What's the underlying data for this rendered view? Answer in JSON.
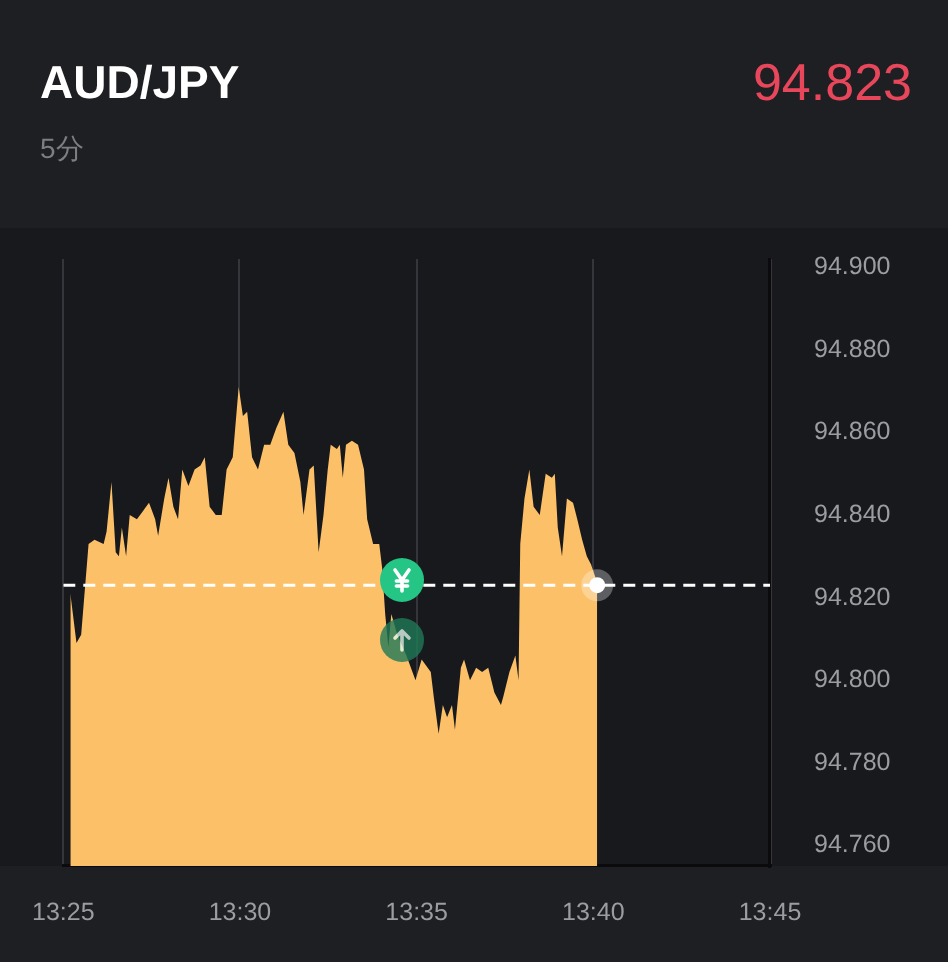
{
  "chart_data": {
    "type": "area",
    "title": "AUD/JPY",
    "subtitle": "5分",
    "annotations": [
      "94.823"
    ],
    "xlim": [
      13.41667,
      13.75
    ],
    "ylim": [
      94.755,
      94.902
    ],
    "xticks": [
      {
        "value": 13.41667,
        "label": "13:25"
      },
      {
        "value": 13.5,
        "label": "13:30"
      },
      {
        "value": 13.58333,
        "label": "13:35"
      },
      {
        "value": 13.66667,
        "label": "13:40"
      },
      {
        "value": 13.75,
        "label": "13:45"
      }
    ],
    "yticks": [
      {
        "value": 94.76,
        "label": "94.760"
      },
      {
        "value": 94.78,
        "label": "94.780"
      },
      {
        "value": 94.8,
        "label": "94.800"
      },
      {
        "value": 94.82,
        "label": "94.820"
      },
      {
        "value": 94.84,
        "label": "94.840"
      },
      {
        "value": 94.86,
        "label": "94.860"
      },
      {
        "value": 94.88,
        "label": "94.880"
      },
      {
        "value": 94.9,
        "label": "94.900"
      }
    ],
    "grid": "x",
    "ref_lines": [
      {
        "axis": "y",
        "value": 94.823,
        "color": "#ffffff",
        "line_style": "dashed"
      }
    ],
    "series": [
      {
        "color": "#fcc068",
        "x": [
          13.42,
          13.4229,
          13.4251,
          13.4286,
          13.4314,
          13.4357,
          13.4371,
          13.4394,
          13.4414,
          13.4429,
          13.4443,
          13.4463,
          13.448,
          13.4514,
          13.4543,
          13.4571,
          13.46,
          13.4614,
          13.4643,
          13.4663,
          13.4686,
          13.4708,
          13.4728,
          13.4757,
          13.4786,
          13.4814,
          13.4834,
          13.4857,
          13.4886,
          13.4914,
          13.4937,
          13.4966,
          13.4994,
          13.5014,
          13.5034,
          13.5057,
          13.5085,
          13.5114,
          13.5143,
          13.5171,
          13.5205,
          13.5228,
          13.5257,
          13.5285,
          13.53,
          13.5328,
          13.5348,
          13.5371,
          13.5394,
          13.5414,
          13.5428,
          13.5457,
          13.5471,
          13.5485,
          13.55,
          13.5528,
          13.5557,
          13.5585,
          13.56,
          13.5628,
          13.5657,
          13.5671,
          13.5685,
          13.57,
          13.5714,
          13.5742,
          13.5785,
          13.5828,
          13.5857,
          13.59,
          13.5914,
          13.5937,
          13.5957,
          13.5977,
          13.6,
          13.6014,
          13.6042,
          13.6057,
          13.6085,
          13.6114,
          13.6142,
          13.6171,
          13.62,
          13.6231,
          13.6242,
          13.6271,
          13.6299,
          13.6314,
          13.6322,
          13.6342,
          13.6365,
          13.6385,
          13.6414,
          13.6442,
          13.6471,
          13.6485,
          13.6499,
          13.6519,
          13.6542,
          13.6571,
          13.6591,
          13.6614,
          13.6636,
          13.6656,
          13.6676,
          13.6685
        ],
        "values": [
          94.821,
          94.809,
          94.811,
          94.833,
          94.834,
          94.833,
          94.836,
          94.848,
          94.831,
          94.83,
          94.837,
          94.83,
          94.84,
          94.839,
          94.841,
          94.843,
          94.839,
          94.835,
          94.844,
          94.849,
          94.842,
          94.839,
          94.851,
          94.847,
          94.851,
          94.852,
          94.854,
          94.842,
          94.84,
          94.84,
          94.851,
          94.854,
          94.871,
          94.864,
          94.865,
          94.854,
          94.851,
          94.857,
          94.857,
          94.861,
          94.865,
          94.857,
          94.855,
          94.848,
          94.84,
          94.851,
          94.852,
          94.831,
          94.84,
          94.851,
          94.857,
          94.856,
          94.857,
          94.849,
          94.857,
          94.858,
          94.857,
          94.851,
          94.839,
          94.833,
          94.833,
          94.827,
          94.816,
          94.808,
          94.816,
          94.811,
          94.806,
          94.8,
          94.805,
          94.802,
          94.796,
          94.787,
          94.794,
          94.791,
          94.794,
          94.788,
          94.803,
          94.805,
          94.8,
          94.803,
          94.802,
          94.803,
          94.797,
          94.794,
          94.796,
          94.802,
          94.806,
          94.8,
          94.833,
          94.844,
          94.851,
          94.842,
          94.84,
          94.85,
          94.849,
          94.85,
          94.837,
          94.83,
          94.844,
          94.843,
          94.839,
          94.834,
          94.83,
          94.828,
          94.825,
          94.823
        ]
      },
      {
        "type": "scatter",
        "color": "#ffffff",
        "marker": "circle",
        "x": [
          13.6685
        ],
        "values": [
          94.823
        ]
      }
    ]
  }
}
